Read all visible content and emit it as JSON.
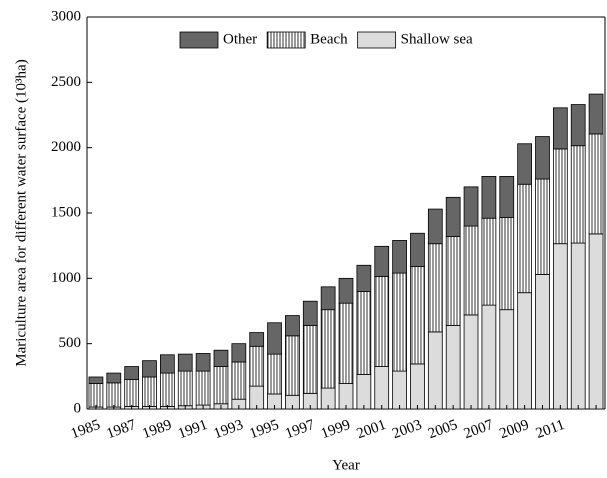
{
  "chart_data": {
    "type": "stacked-bar",
    "y_label": "Mariculture area for different water surface (10³ha)",
    "x_label": "Year",
    "categories": [
      "1985",
      null,
      "1987",
      null,
      "1989",
      null,
      "1991",
      null,
      "1993",
      null,
      "1995",
      null,
      "1997",
      null,
      "1999",
      null,
      "2001",
      null,
      "2003",
      null,
      "2005",
      null,
      "2007",
      null,
      "2009",
      null,
      "2011",
      null,
      null
    ],
    "series": [
      {
        "name": "Shallow sea",
        "color": "#dcdcdc",
        "values": [
          15,
          15,
          20,
          20,
          20,
          25,
          30,
          40,
          75,
          175,
          115,
          105,
          120,
          160,
          195,
          265,
          325,
          290,
          345,
          590,
          640,
          720,
          795,
          760,
          890,
          1030,
          1265,
          1270,
          1340
        ]
      },
      {
        "name": "Beach",
        "color": "#ffffff",
        "pattern": "vertical-lines",
        "values": [
          180,
          185,
          205,
          225,
          255,
          265,
          260,
          285,
          285,
          305,
          305,
          455,
          520,
          600,
          615,
          635,
          690,
          750,
          745,
          675,
          680,
          680,
          665,
          705,
          830,
          730,
          725,
          745,
          765
        ]
      },
      {
        "name": "Other",
        "color": "#666666",
        "values": [
          50,
          75,
          100,
          125,
          140,
          130,
          135,
          125,
          140,
          105,
          240,
          155,
          185,
          175,
          190,
          200,
          230,
          250,
          255,
          265,
          300,
          300,
          320,
          315,
          310,
          325,
          315,
          315,
          305
        ]
      }
    ],
    "legend_order": [
      "Other",
      "Beach",
      "Shallow sea"
    ],
    "legend": "top",
    "ylim": [
      0,
      3000
    ],
    "yticks": [
      0,
      500,
      1000,
      1500,
      2000,
      2500,
      3000
    ],
    "grid": false
  }
}
